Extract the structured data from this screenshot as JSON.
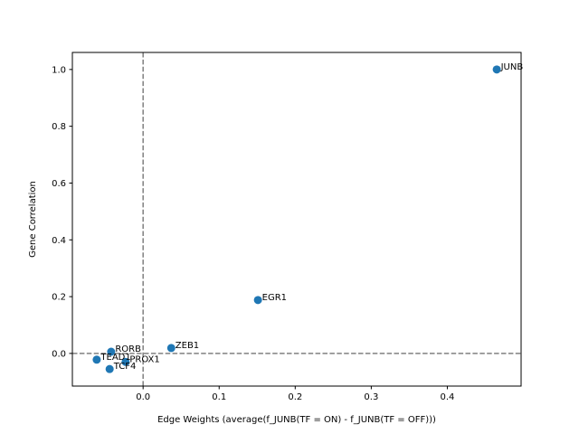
{
  "chart_data": {
    "type": "scatter",
    "xlabel": "Edge Weights (average(f_JUNB(TF = ON) - f_JUNB(TF = OFF)))",
    "ylabel": "Gene Correlation",
    "xlim": [
      -0.093,
      0.497
    ],
    "ylim": [
      -0.115,
      1.06
    ],
    "xticks": [
      0.0,
      0.1,
      0.2,
      0.3,
      0.4
    ],
    "xtick_labels": [
      "0.0",
      "0.1",
      "0.2",
      "0.3",
      "0.4"
    ],
    "yticks": [
      0.0,
      0.2,
      0.4,
      0.6,
      0.8,
      1.0
    ],
    "ytick_labels": [
      "0.0",
      "0.2",
      "0.4",
      "0.6",
      "0.8",
      "1.0"
    ],
    "reference_lines": {
      "x": 0,
      "y": 0,
      "style": "dashed",
      "color": "#808080"
    },
    "marker_color": "#1f77b4",
    "grid": false,
    "points": [
      {
        "label": "JUNB",
        "x": 0.465,
        "y": 1.0
      },
      {
        "label": "EGR1",
        "x": 0.151,
        "y": 0.188
      },
      {
        "label": "ZEB1",
        "x": 0.037,
        "y": 0.019
      },
      {
        "label": "RORB",
        "x": -0.042,
        "y": 0.006
      },
      {
        "label": "PROX1",
        "x": -0.023,
        "y": -0.03
      },
      {
        "label": "TEAD1",
        "x": -0.061,
        "y": -0.022
      },
      {
        "label": "TCF4",
        "x": -0.044,
        "y": -0.055
      }
    ]
  }
}
